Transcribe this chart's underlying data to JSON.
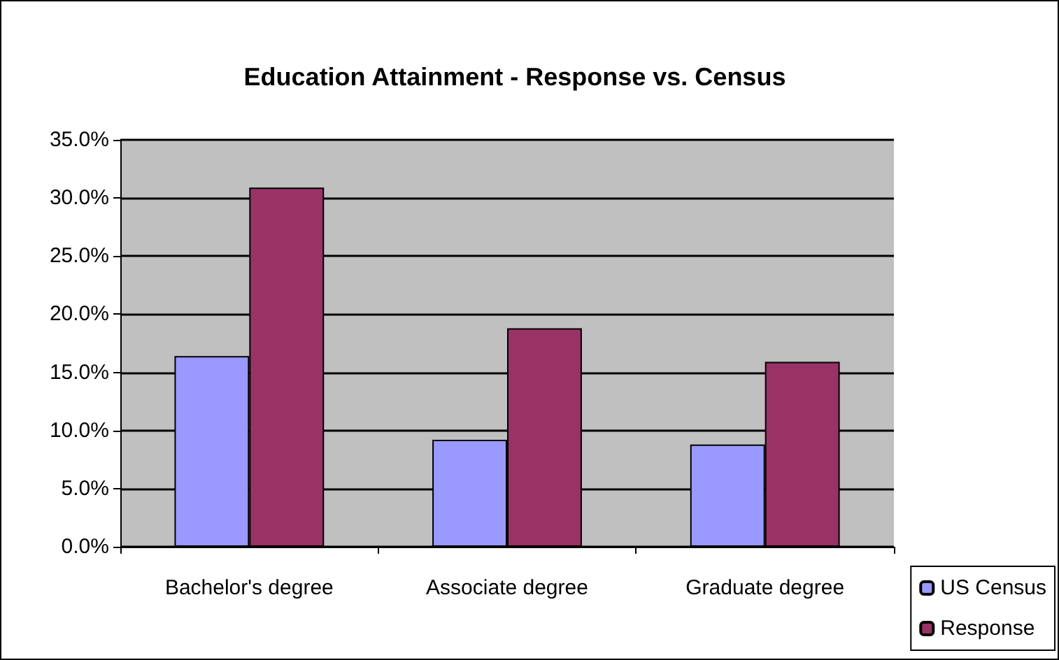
{
  "chart_data": {
    "type": "bar",
    "title": "Education Attainment - Response vs. Census",
    "categories": [
      "Bachelor's degree",
      "Associate degree",
      "Graduate degree"
    ],
    "series": [
      {
        "name": "US Census",
        "color": "#9999ff",
        "values": [
          16.4,
          9.2,
          8.8
        ]
      },
      {
        "name": "Response",
        "color": "#993366",
        "values": [
          30.9,
          18.8,
          15.9
        ]
      }
    ],
    "ylim": [
      0,
      35
    ],
    "yticks": [
      {
        "value": 0,
        "label": "0.0%"
      },
      {
        "value": 5,
        "label": "5.0%"
      },
      {
        "value": 10,
        "label": "10.0%"
      },
      {
        "value": 15,
        "label": "15.0%"
      },
      {
        "value": 20,
        "label": "20.0%"
      },
      {
        "value": 25,
        "label": "25.0%"
      },
      {
        "value": 30,
        "label": "30.0%"
      },
      {
        "value": 35,
        "label": "35.0%"
      }
    ],
    "grid": "y",
    "legend": "bottom right"
  }
}
